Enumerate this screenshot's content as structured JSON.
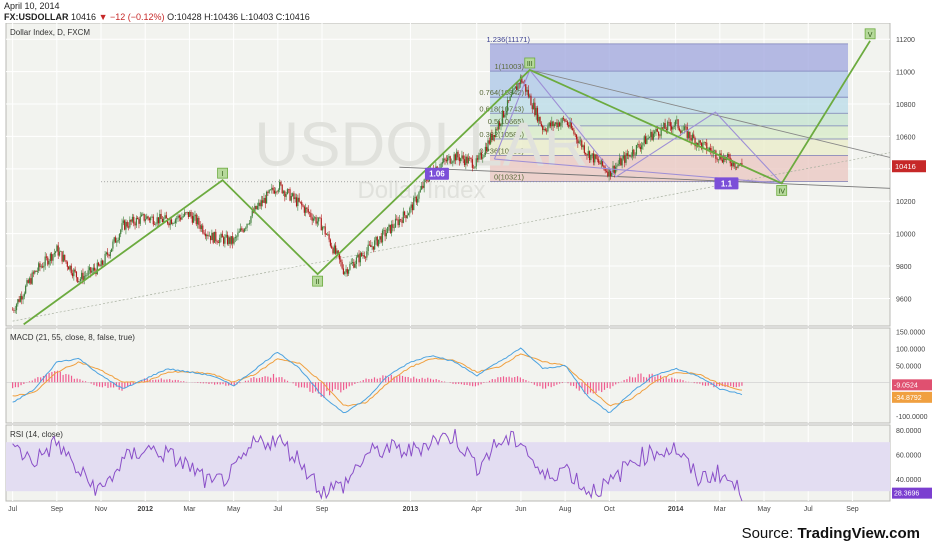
{
  "header": {
    "date": "April 10, 2014",
    "symbol": "FX:USDOLLAR",
    "last": "10416",
    "change": "−12 (−0.12%)",
    "open_label": "O:",
    "open": "10428",
    "high_label": "H:",
    "high": "10436",
    "low_label": "L:",
    "low": "10403",
    "close_label": "C:",
    "close": "10416"
  },
  "source": {
    "prefix": "Source: ",
    "brand": "TradingView.com"
  },
  "colors": {
    "bg": "#f2f3ef",
    "grid": "#ffffff",
    "candle_up": "#3f7f3a",
    "candle_down": "#b01818",
    "elliott": "#6cab3f",
    "trend": "#888888",
    "harmonic": "#9e8fd6",
    "macd": "#4da3e0",
    "signal": "#f0a040",
    "hist": "#ef5b8f",
    "rsi": "#8a4fc8",
    "rsi_band": "#e3ddf2"
  },
  "chart_data": [
    {
      "type": "candlestick",
      "title": "Dollar Index, D, FXCM",
      "watermark": "USDOLLAR",
      "watermark_sub": "Dollar Index",
      "x_ticks": [
        "Jul",
        "Sep",
        "Nov",
        "2012",
        "Mar",
        "May",
        "Jul",
        "Sep",
        "Nov",
        "2013",
        "Mar",
        "May",
        "Jul",
        "Sep",
        "Nov",
        "2014",
        "Mar",
        "May",
        "Jul",
        "Sep"
      ],
      "x_ticks_shown": [
        "Jul",
        "Sep",
        "Nov",
        "2012",
        "Mar",
        "May",
        "Jul",
        "Sep",
        "2013",
        "Apr",
        "Jun",
        "Aug",
        "Oct",
        "2014",
        "Mar",
        "May",
        "Jul",
        "Sep"
      ],
      "x_tick_months": [
        0,
        2,
        4,
        6,
        8,
        10,
        12,
        14,
        18,
        21,
        23,
        25,
        27,
        30,
        32,
        34,
        36,
        38
      ],
      "y_ticks": [
        9600,
        9800,
        10000,
        10200,
        10400,
        10600,
        10800,
        11000,
        11200
      ],
      "ylim": [
        9430,
        11300
      ],
      "last_price_label": "10416",
      "closes_monthly": [
        9530,
        9760,
        9900,
        9720,
        9800,
        10050,
        10100,
        10080,
        10120,
        9980,
        9950,
        10150,
        10300,
        10180,
        10050,
        9770,
        9890,
        10020,
        10150,
        10400,
        10480,
        10430,
        10680,
        10960,
        10650,
        10700,
        10500,
        10380,
        10500,
        10620,
        10680,
        10560,
        10480,
        10416
      ],
      "elliott_waves": [
        {
          "label": "I",
          "month": 9.5,
          "value": 10330
        },
        {
          "label": "II",
          "month": 13.8,
          "value": 9750
        },
        {
          "label": "III",
          "month": 23.4,
          "value": 11010
        },
        {
          "label": "IV",
          "month": 34.8,
          "value": 10310
        },
        {
          "label": "V",
          "month": 38.8,
          "value": 11190
        }
      ],
      "fibonacci": [
        {
          "label": "1.236(11171)",
          "value": 11171
        },
        {
          "label": "1(11003)",
          "value": 11003
        },
        {
          "label": "0.764(10842)",
          "value": 10842
        },
        {
          "label": "0.618(10743)",
          "value": 10743
        },
        {
          "label": "0.5(10665)",
          "value": 10665
        },
        {
          "label": "0.382(10584)",
          "value": 10584
        },
        {
          "label": "0.236(10483)",
          "value": 10483
        },
        {
          "label": "0(10321)",
          "value": 10321
        }
      ],
      "ratio_labels": [
        "1.06",
        "1.1"
      ]
    },
    {
      "type": "line",
      "title": "MACD (21, 55, close, 8, false, true)",
      "y_ticks": [
        "150.0000",
        "100.0000",
        "50.0000",
        "-50.0000",
        "-100.0000"
      ],
      "y_tick_values": [
        150,
        100,
        50,
        -50,
        -100
      ],
      "ylim": [
        -120,
        160
      ],
      "last_values": [
        "-9.0524",
        "-34.8792"
      ],
      "macd_monthly": [
        -60,
        -20,
        60,
        70,
        20,
        -20,
        10,
        40,
        30,
        20,
        -10,
        40,
        90,
        40,
        -40,
        -90,
        -50,
        20,
        60,
        80,
        60,
        20,
        60,
        100,
        40,
        50,
        -40,
        -90,
        -30,
        20,
        40,
        20,
        -20,
        -35
      ],
      "signal_monthly": [
        -40,
        -30,
        30,
        60,
        35,
        0,
        0,
        30,
        30,
        25,
        0,
        25,
        70,
        55,
        0,
        -70,
        -60,
        0,
        45,
        70,
        65,
        30,
        45,
        85,
        60,
        50,
        -10,
        -70,
        -50,
        0,
        30,
        25,
        -5,
        -25
      ]
    },
    {
      "type": "line",
      "title": "RSI (14, close)",
      "y_ticks": [
        "80.0000",
        "60.0000",
        "40.0000"
      ],
      "y_tick_values": [
        80,
        60,
        40
      ],
      "band": [
        30,
        70
      ],
      "ylim": [
        22,
        84
      ],
      "last_value": "28.3696",
      "rsi_monthly": [
        65,
        55,
        70,
        45,
        30,
        55,
        65,
        60,
        50,
        35,
        45,
        70,
        72,
        55,
        30,
        35,
        60,
        65,
        62,
        72,
        75,
        50,
        70,
        72,
        40,
        50,
        30,
        35,
        55,
        62,
        65,
        40,
        45,
        28
      ]
    }
  ]
}
